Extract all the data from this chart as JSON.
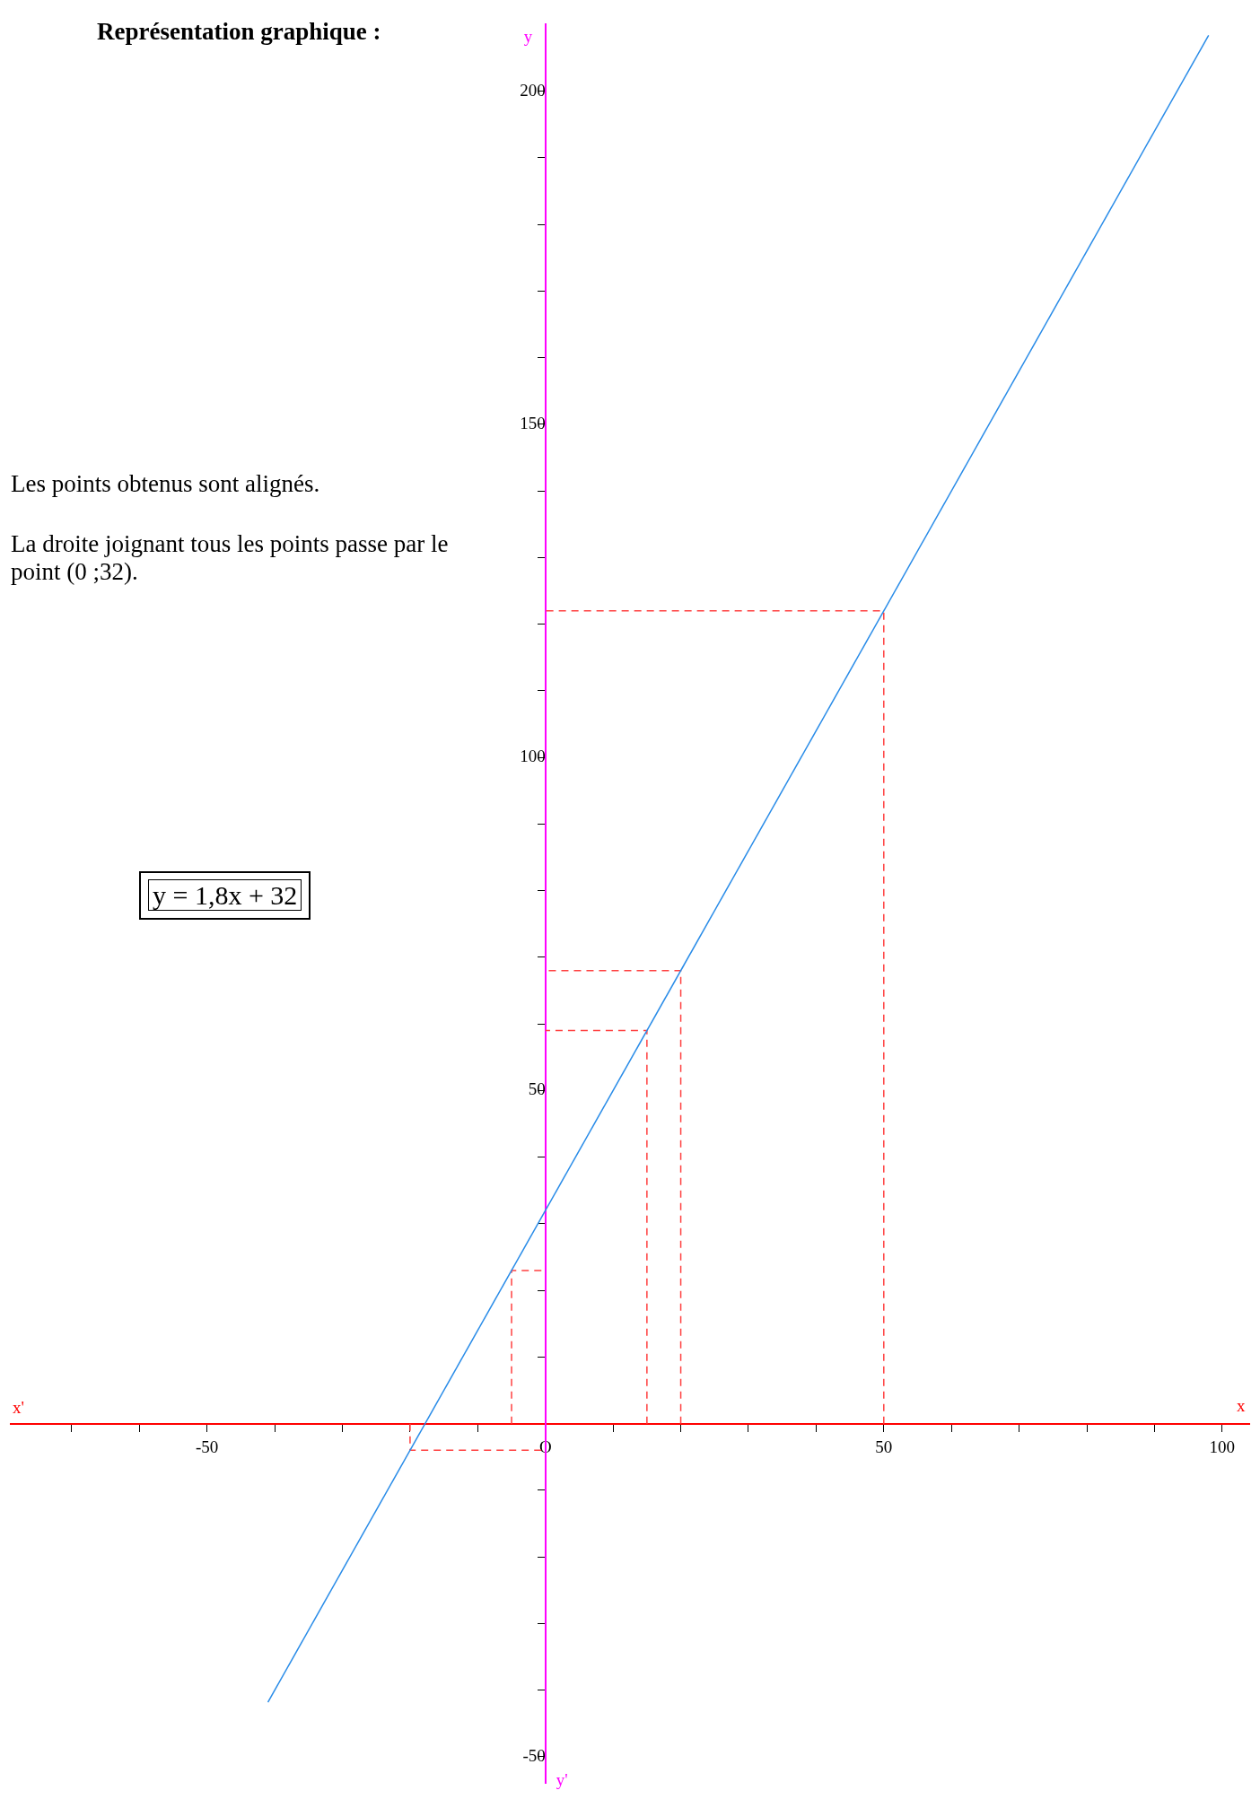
{
  "chart_data": {
    "type": "line",
    "title": "Représentation graphique :",
    "xlabel": "x",
    "ylabel": "y",
    "annotations": [
      "Les points obtenus sont alignés.",
      "La droite joignant tous les points passe par le point (0 ;32).",
      "y = 1,8x + 32",
      "x'",
      "y'"
    ],
    "xlim": [
      -79,
      104
    ],
    "ylim": [
      -54,
      210
    ],
    "xticks": [
      {
        "value": -70,
        "label": null
      },
      {
        "value": -60,
        "label": null
      },
      -50,
      {
        "value": -40,
        "label": null
      },
      {
        "value": -30,
        "label": null
      },
      {
        "value": -20,
        "label": null
      },
      {
        "value": -10,
        "label": null
      },
      {
        "value": 0,
        "label": "O"
      },
      {
        "value": 10,
        "label": null
      },
      {
        "value": 20,
        "label": null
      },
      {
        "value": 30,
        "label": null
      },
      {
        "value": 40,
        "label": null
      },
      50,
      {
        "value": 60,
        "label": null
      },
      {
        "value": 70,
        "label": null
      },
      {
        "value": 80,
        "label": null
      },
      {
        "value": 90,
        "label": null
      },
      100
    ],
    "yticks": [
      -50,
      {
        "value": -40,
        "label": null
      },
      {
        "value": -30,
        "label": null
      },
      {
        "value": -20,
        "label": null
      },
      {
        "value": -10,
        "label": null
      },
      {
        "value": 10,
        "label": null
      },
      {
        "value": 20,
        "label": null
      },
      {
        "value": 30,
        "label": null
      },
      {
        "value": 40,
        "label": null
      },
      50,
      {
        "value": 60,
        "label": null
      },
      {
        "value": 70,
        "label": null
      },
      {
        "value": 80,
        "label": null
      },
      {
        "value": 90,
        "label": null
      },
      100,
      {
        "value": 110,
        "label": null
      },
      {
        "value": 120,
        "label": null
      },
      {
        "value": 130,
        "label": null
      },
      {
        "value": 140,
        "label": null
      },
      150,
      {
        "value": 160,
        "label": null
      },
      {
        "value": 170,
        "label": null
      },
      {
        "value": 180,
        "label": null
      },
      {
        "value": 190,
        "label": null
      },
      200
    ],
    "grid": false,
    "legend": false,
    "marker": "none",
    "series": [
      {
        "color": "#2a8ce8",
        "x": [
          -41,
          98
        ],
        "values": [
          -41.8,
          208.4
        ]
      },
      {
        "color": "#ff4040",
        "line_style": "dashed",
        "x": [
          -20,
          -20,
          0
        ],
        "values": [
          0,
          -4,
          -4
        ]
      },
      {
        "color": "#ff4040",
        "line_style": "dashed",
        "x": [
          -5,
          -5,
          0
        ],
        "values": [
          0,
          23,
          23
        ]
      },
      {
        "color": "#ff4040",
        "line_style": "dashed",
        "x": [
          15,
          15,
          0
        ],
        "values": [
          0,
          59,
          59
        ]
      },
      {
        "color": "#ff4040",
        "line_style": "dashed",
        "x": [
          20,
          20,
          0
        ],
        "values": [
          0,
          68,
          68
        ]
      },
      {
        "color": "#ff4040",
        "line_style": "dashed",
        "x": [
          50,
          50,
          0
        ],
        "values": [
          0,
          122,
          122
        ]
      }
    ]
  }
}
